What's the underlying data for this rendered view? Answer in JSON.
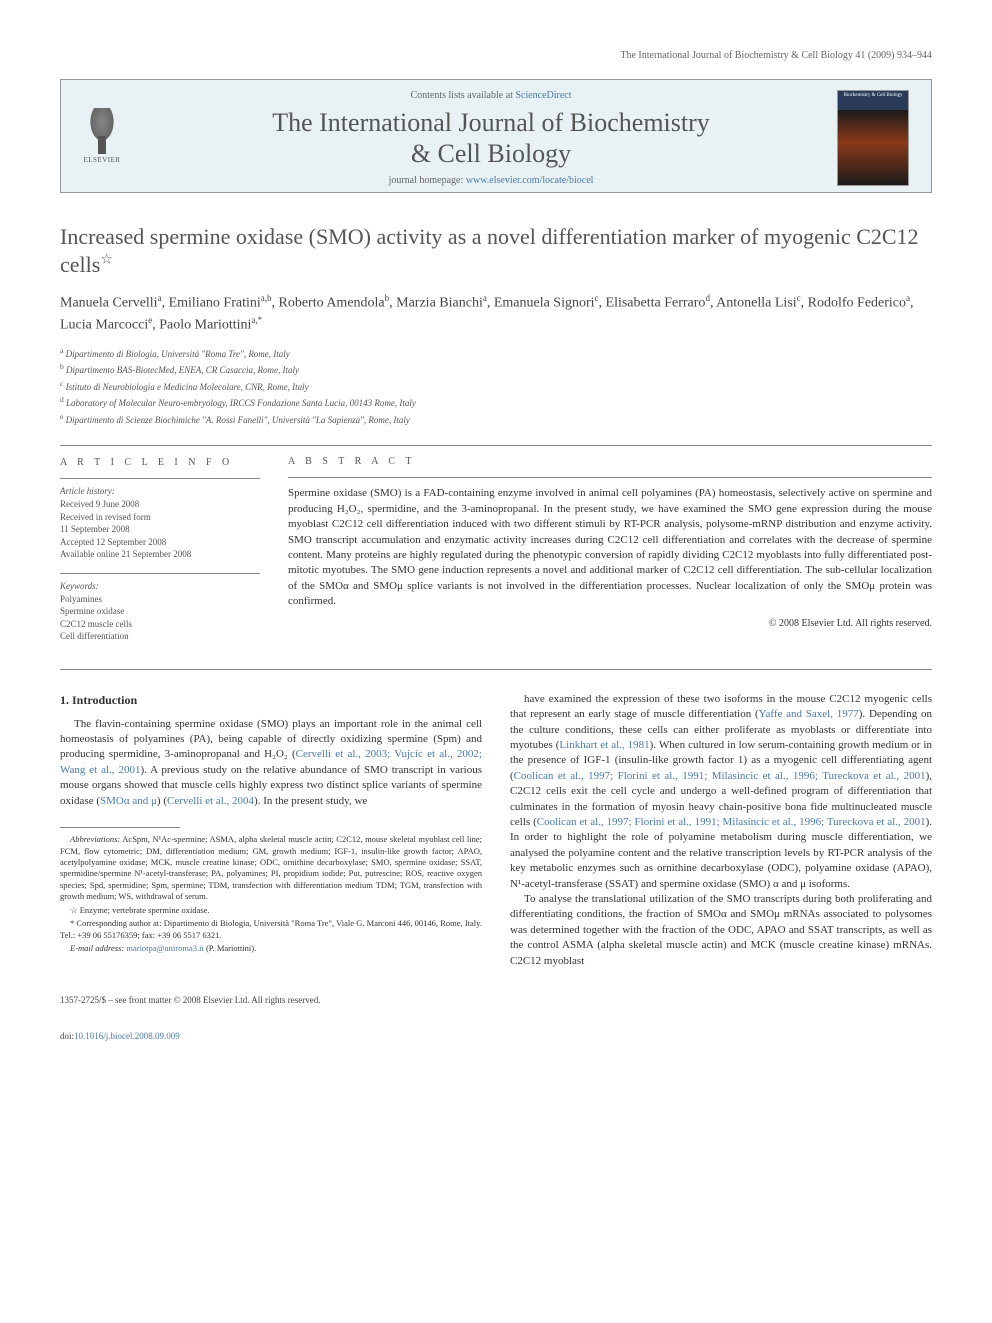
{
  "running_header": "The International Journal of Biochemistry & Cell Biology 41 (2009) 934–944",
  "masthead": {
    "contents_prefix": "Contents lists available at ",
    "contents_link": "ScienceDirect",
    "journal_name_line1": "The International Journal of Biochemistry",
    "journal_name_line2": "& Cell Biology",
    "homepage_prefix": "journal homepage: ",
    "homepage_url": "www.elsevier.com/locate/biocel",
    "publisher": "ELSEVIER",
    "cover_label": "Biochemistry & Cell Biology"
  },
  "title": "Increased spermine oxidase (SMO) activity as a novel differentiation marker of myogenic C2C12 cells",
  "title_note_symbol": "☆",
  "authors_html": "Manuela Cervelli<sup>a</sup>, Emiliano Fratini<sup>a,b</sup>, Roberto Amendola<sup>b</sup>, Marzia Bianchi<sup>a</sup>, Emanuela Signori<sup>c</sup>, Elisabetta Ferraro<sup>d</sup>, Antonella Lisi<sup>c</sup>, Rodolfo Federico<sup>a</sup>, Lucia Marcocci<sup>e</sup>, Paolo Mariottini<sup>a,*</sup>",
  "affiliations": [
    "a Dipartimento di Biologia, Università \"Roma Tre\", Rome, Italy",
    "b Dipartimento BAS-BiotecMed, ENEA, CR Casaccia, Rome, Italy",
    "c Istituto di Neurobiologia e Medicina Molecolare, CNR, Rome, Italy",
    "d Laboratory of Molecular Neuro-embryology, IRCCS Fondazione Santa Lucia, 00143 Rome, Italy",
    "e Dipartimento di Scienze Biochimiche \"A. Rossi Fanelli\", Università \"La Sapienza\", Rome, Italy"
  ],
  "article_info": {
    "heading": "A R T I C L E   I N F O",
    "history_label": "Article history:",
    "history": [
      "Received 9 June 2008",
      "Received in revised form",
      "11 September 2008",
      "Accepted 12 September 2008",
      "Available online 21 September 2008"
    ],
    "keywords_label": "Keywords:",
    "keywords": [
      "Polyamines",
      "Spermine oxidase",
      "C2C12 muscle cells",
      "Cell differentiation"
    ]
  },
  "abstract": {
    "heading": "A B S T R A C T",
    "text": "Spermine oxidase (SMO) is a FAD-containing enzyme involved in animal cell polyamines (PA) homeostasis, selectively active on spermine and producing H₂O₂, spermidine, and the 3-aminopropanal. In the present study, we have examined the SMO gene expression during the mouse myoblast C2C12 cell differentiation induced with two different stimuli by RT-PCR analysis, polysome-mRNP distribution and enzyme activity. SMO transcript accumulation and enzymatic activity increases during C2C12 cell differentiation and correlates with the decrease of spermine content. Many proteins are highly regulated during the phenotypic conversion of rapidly dividing C2C12 myoblasts into fully differentiated post-mitotic myotubes. The SMO gene induction represents a novel and additional marker of C2C12 cell differentiation. The sub-cellular localization of the SMOα and SMOμ splice variants is not involved in the differentiation processes. Nuclear localization of only the SMOμ protein was confirmed.",
    "copyright": "© 2008 Elsevier Ltd. All rights reserved."
  },
  "body": {
    "section_heading": "1.  Introduction",
    "left_p1": "The flavin-containing spermine oxidase (SMO) plays an important role in the animal cell homeostasis of polyamines (PA), being capable of directly oxidizing spermine (Spm) and producing spermidine, 3-aminopropanal and H₂O₂ (Cervelli et al., 2003; Vujcic et al., 2002; Wang et al., 2001). A previous study on the relative abundance of SMO transcript in various mouse organs showed that muscle cells highly express two distinct splice variants of spermine oxidase (SMOα and μ) (Cervelli et al., 2004). In the present study, we",
    "right_p1": "have examined the expression of these two isoforms in the mouse C2C12 myogenic cells that represent an early stage of muscle differentiation (Yaffe and Saxel, 1977). Depending on the culture conditions, these cells can either proliferate as myoblasts or differentiate into myotubes (Linkhart et al., 1981). When cultured in low serum-containing growth medium or in the presence of IGF-1 (insulin-like growth factor 1) as a myogenic cell differentiating agent (Coolican et al., 1997; Florini et al., 1991; Milasincic et al., 1996; Tureckova et al., 2001), C2C12 cells exit the cell cycle and undergo a well-defined program of differentiation that culminates in the formation of myosin heavy chain-positive bona fide multinucleated muscle cells (Coolican et al., 1997; Florini et al., 1991; Milasincic et al., 1996; Tureckova et al., 2001). In order to highlight the role of polyamine metabolism during muscle differentiation, we analysed the polyamine content and the relative transcription levels by RT-PCR analysis of the key metabolic enzymes such as ornithine decarboxylase (ODC), polyamine oxidase (APAO), N¹-acetyl-transferase (SSAT) and spermine oxidase (SMO) α and μ isoforms.",
    "right_p2": "To analyse the translational utilization of the SMO transcripts during both proliferating and differentiating conditions, the fraction of SMOα and SMOμ mRNAs associated to polysomes was determined together with the fraction of the ODC, APAO and SSAT transcripts, as well as the control ASMA (alpha skeletal muscle actin) and MCK (muscle creatine kinase) mRNAs. C2C12 myoblast"
  },
  "footnotes": {
    "abbrev_label": "Abbreviations:",
    "abbrev_text": " AcSpm, N¹Ac-spermine; ASMA, alpha skeletal muscle actin; C2C12, mouse skeletal myoblast cell line; FCM, flow cytometric; DM, differentiation medium; GM, growth medium; IGF-1, insulin-like growth factor; APAO, acetylpolyamine oxidase; MCK, muscle creatine kinase; ODC, ornithine decarboxylase; SMO, spermine oxidase; SSAT, spermidine/spermine N¹-acetyl-transferase; PA, polyamines; PI, propidium iodide; Put, putrescine; ROS, reactive oxygen species; Spd, spermidine; Spm, spermine; TDM, transfection with differentiation medium TDM; TGM, transfection with growth medium; WS, withdrawal of serum.",
    "enzyme_note": "☆ Enzyme; vertebrate spermine oxidase.",
    "corr_label": "* Corresponding author at:",
    "corr_text": " Dipartimento di Biologia, Università \"Roma Tre\", Viale G. Marconi 446, 00146, Rome, Italy. Tel.: +39 06 55176359; fax: +39 06 5517 6321.",
    "email_label": "E-mail address:",
    "email": " mariotpa@uniroma3.it",
    "email_suffix": " (P. Mariottini)."
  },
  "footer": {
    "issn_line": "1357-2725/$ – see front matter © 2008 Elsevier Ltd. All rights reserved.",
    "doi_prefix": "doi:",
    "doi": "10.1016/j.biocel.2008.09.009"
  },
  "colors": {
    "link": "#4a7aaa",
    "text": "#333333",
    "muted": "#666666",
    "masthead_bg": "#e8f2f5",
    "rule": "#888888"
  }
}
